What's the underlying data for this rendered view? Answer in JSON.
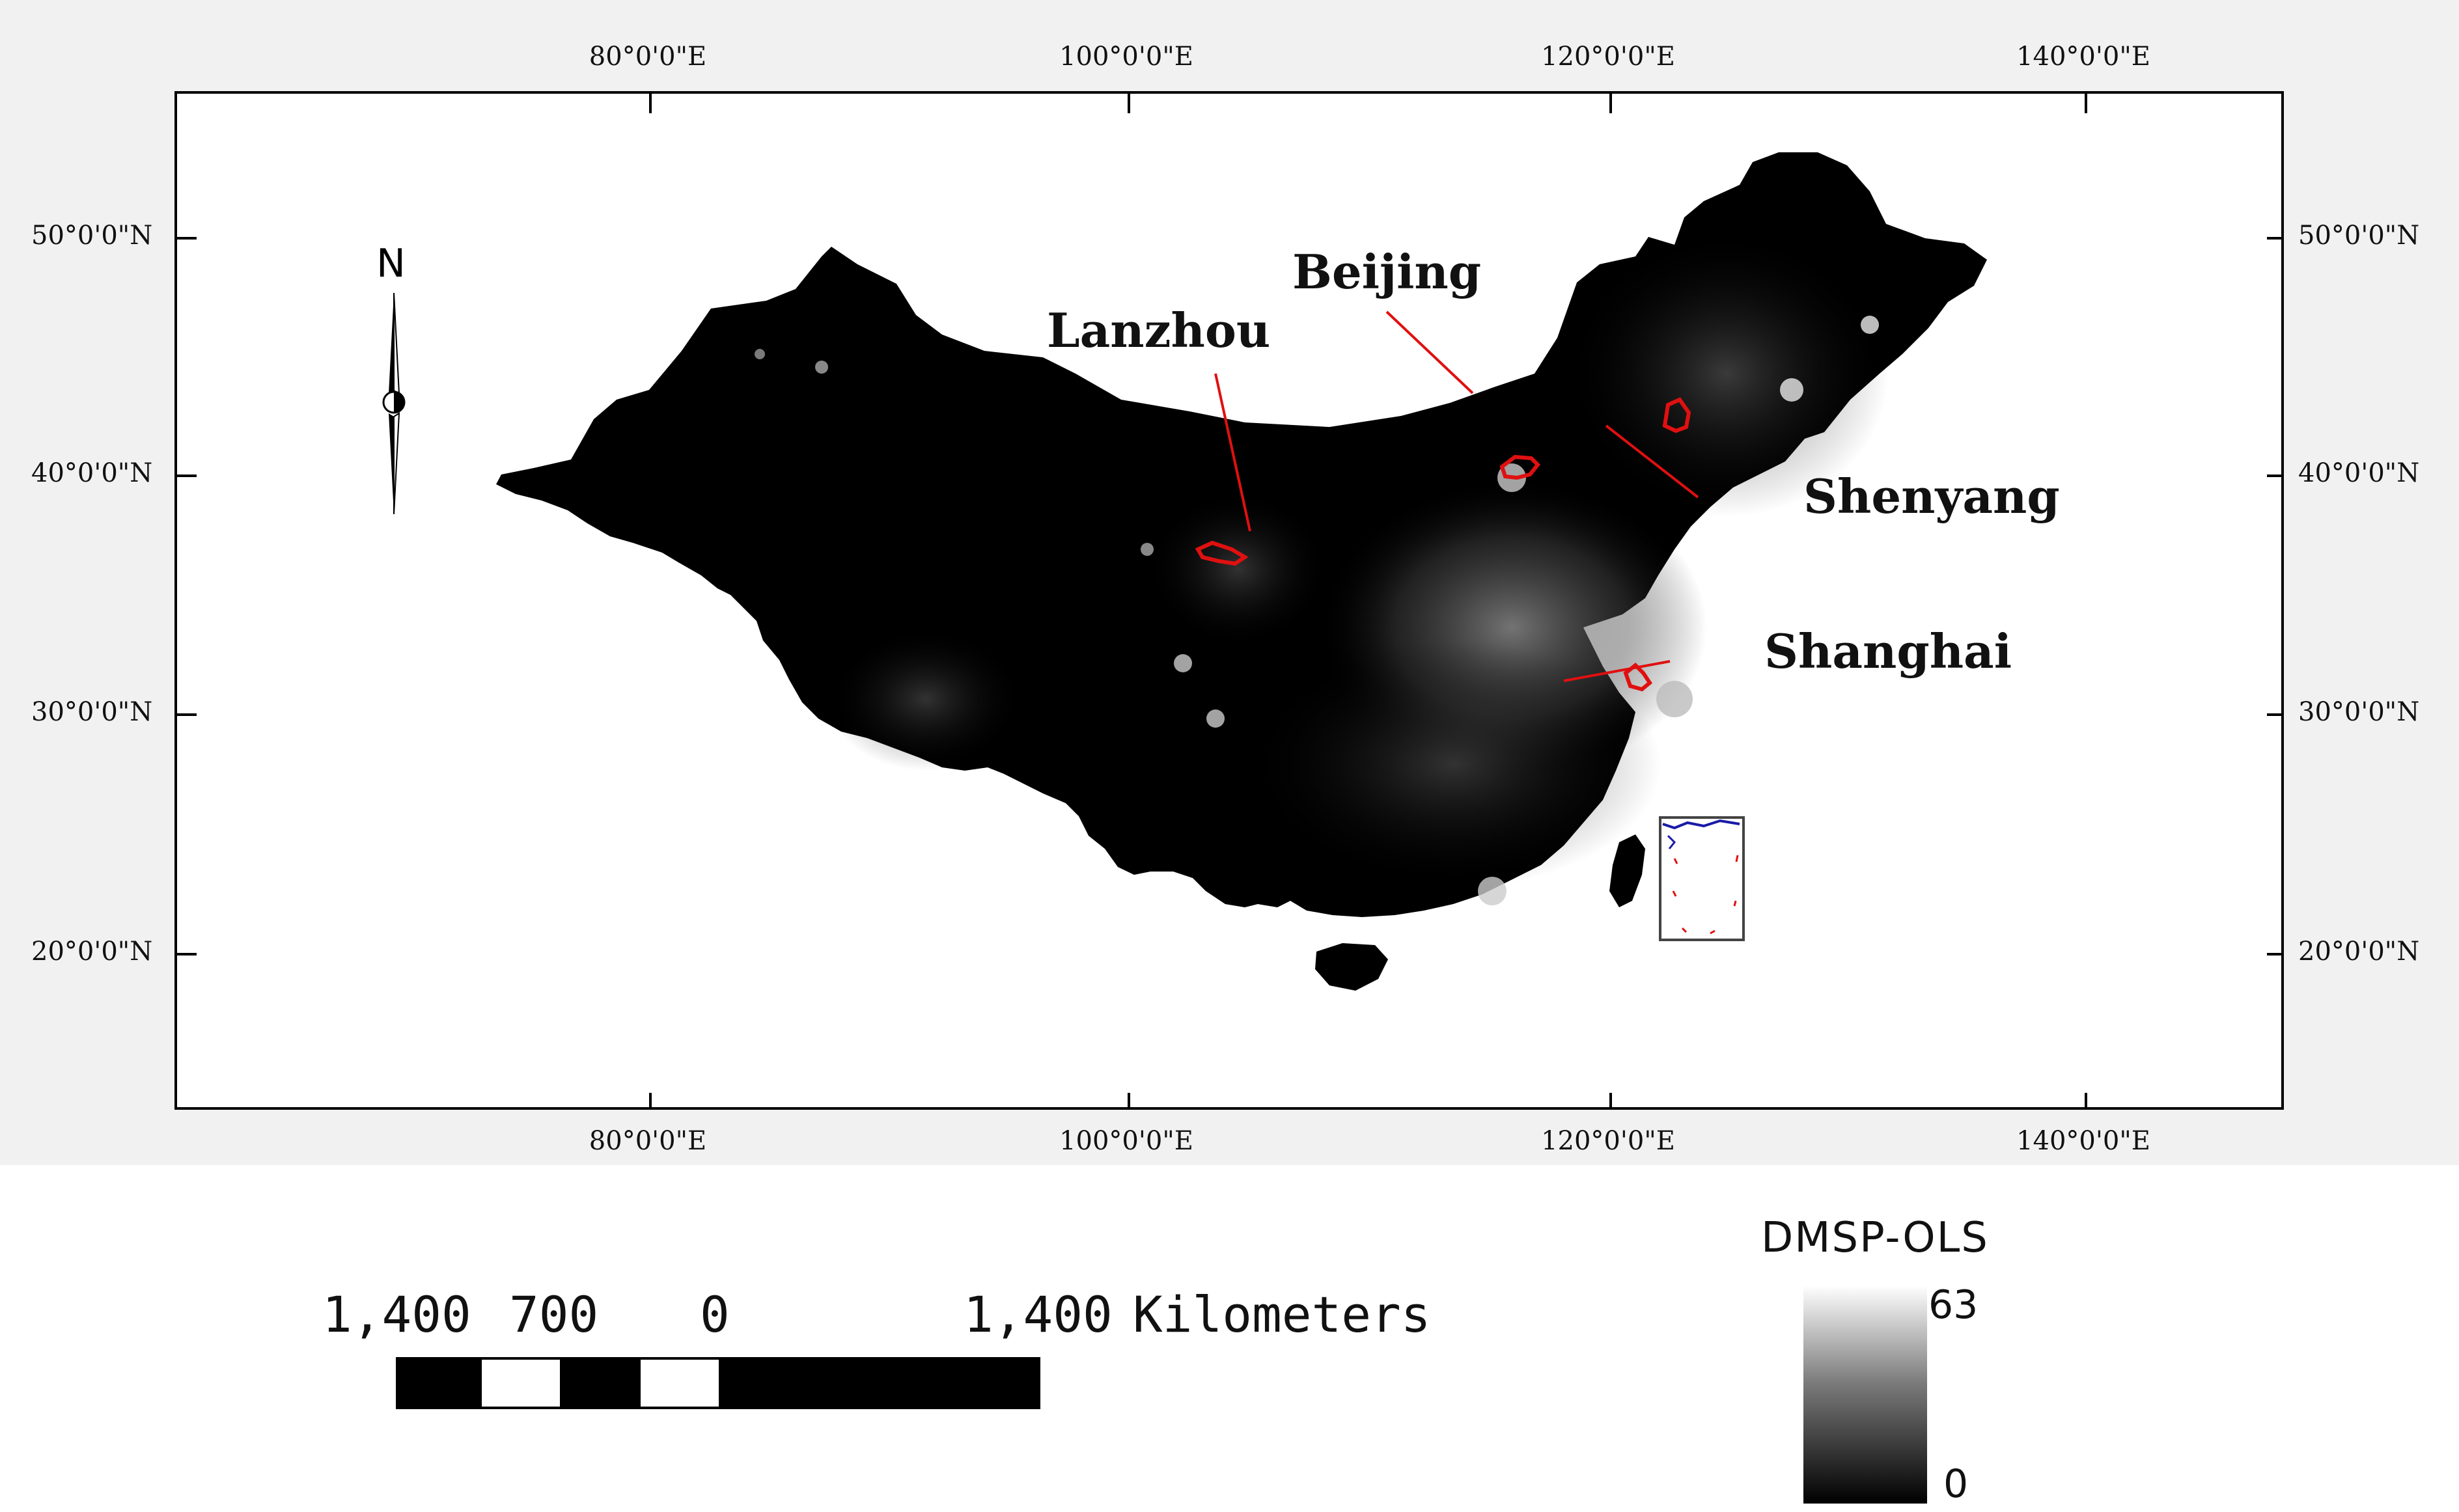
{
  "map": {
    "graticule": {
      "top_lon_labels": [
        "80°0'0\"E",
        "100°0'0\"E",
        "120°0'0\"E",
        "140°0'0\"E"
      ],
      "bottom_lon_labels": [
        "80°0'0\"E",
        "100°0'0\"E",
        "120°0'0\"E",
        "140°0'0\"E"
      ],
      "left_lat_labels": [
        "50°0'0\"N",
        "40°0'0\"N",
        "30°0'0\"N",
        "20°0'0\"N"
      ],
      "right_lat_labels": [
        "50°0'0\"N",
        "40°0'0\"N",
        "30°0'0\"N",
        "20°0'0\"N"
      ]
    },
    "cities": {
      "lanzhou": "Lanzhou",
      "beijing": "Beijing",
      "shenyang": "Shenyang",
      "shanghai": "Shanghai"
    },
    "north_arrow_label": "N",
    "colors": {
      "land": "#000000",
      "panel_background": "#f1f1f1",
      "city_outline": "#e01010",
      "inset_line": "#1a1aa8"
    }
  },
  "scalebar": {
    "labels": [
      "1,400",
      "700",
      "0",
      "1,400"
    ],
    "unit": "Kilometers"
  },
  "legend": {
    "title": "DMSP-OLS",
    "max": "63",
    "min": "0"
  }
}
